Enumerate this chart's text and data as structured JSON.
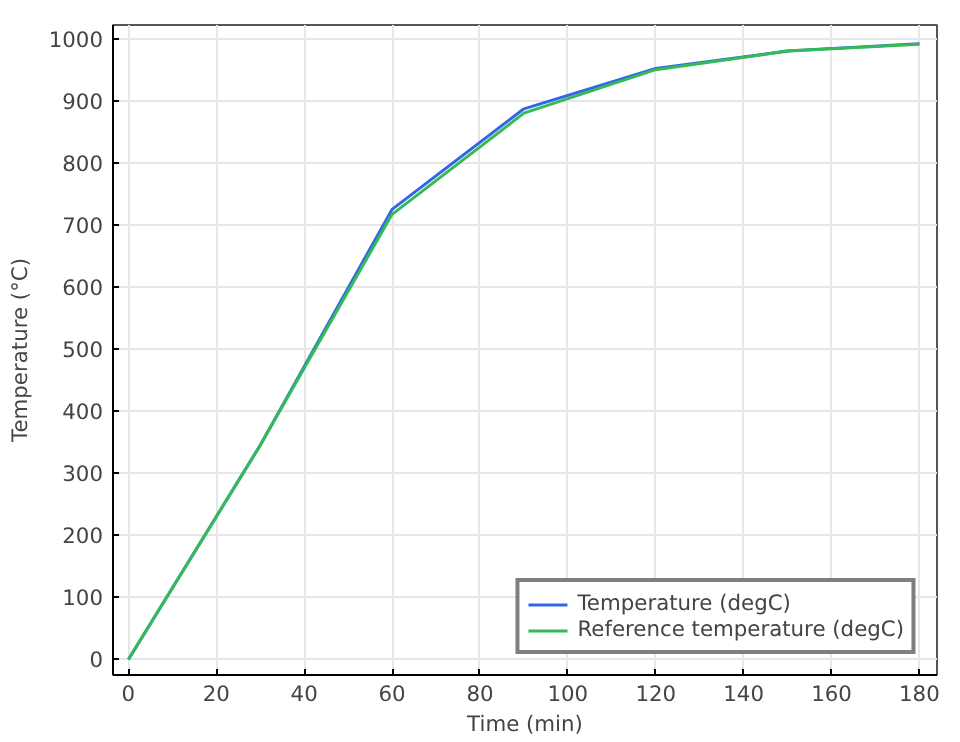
{
  "chart_data": {
    "type": "line",
    "xlabel": "Time (min)",
    "ylabel": "Temperature (°C)",
    "x": [
      0,
      30,
      60,
      90,
      120,
      150,
      180
    ],
    "series": [
      {
        "name": "Temperature (degC)",
        "color": "#3366e6",
        "values": [
          0,
          345,
          725,
          887,
          952,
          980,
          992
        ]
      },
      {
        "name": "Reference temperature (degC)",
        "color": "#33bb55",
        "values": [
          0,
          345,
          717,
          880,
          950,
          980,
          991
        ]
      }
    ],
    "xlim": [
      -3.5,
      184
    ],
    "ylim": [
      -25,
      1022
    ],
    "xticks": [
      0,
      20,
      40,
      60,
      80,
      100,
      120,
      140,
      160,
      180
    ],
    "yticks": [
      0,
      100,
      200,
      300,
      400,
      500,
      600,
      700,
      800,
      900,
      1000
    ],
    "grid": true,
    "legend": "bottom right",
    "marker": "none",
    "line_style": "solid"
  }
}
